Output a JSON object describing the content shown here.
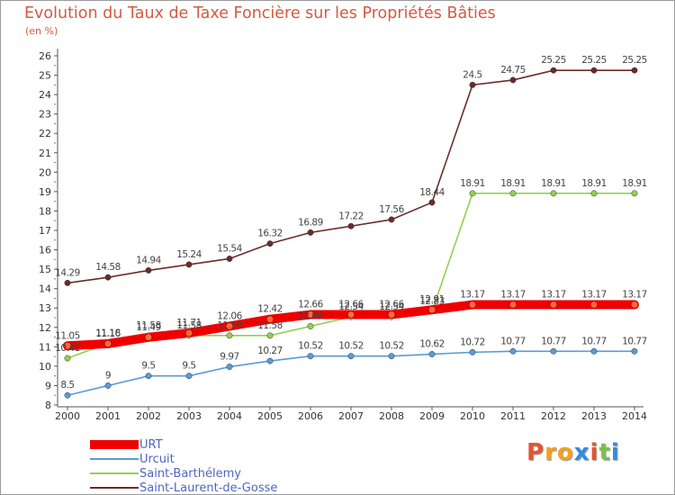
{
  "title": "Evolution du Taux de Taxe Foncière sur les Propriétés Bâties",
  "unit": "(en %)",
  "logo": {
    "text": "Proxiti",
    "colors": [
      "#e0562f",
      "#f0a21c",
      "#f0a21c",
      "#2f8ee0",
      "#e0562f",
      "#7cc04a",
      "#2f8ee0"
    ]
  },
  "chart_data": {
    "type": "line",
    "title": "Evolution du Taux de Taxe Foncière sur les Propriétés Bâties",
    "ylabel": "(en %)",
    "xlabel": "",
    "ylim": [
      8,
      26
    ],
    "yticks": [
      8,
      9,
      10,
      11,
      12,
      13,
      14,
      15,
      16,
      17,
      18,
      19,
      20,
      21,
      22,
      23,
      24,
      25,
      26
    ],
    "x": [
      "2000",
      "2001",
      "2002",
      "2003",
      "2004",
      "2005",
      "2006",
      "2007",
      "2008",
      "2009",
      "2010",
      "2011",
      "2012",
      "2013",
      "2014"
    ],
    "grid": false,
    "legend": "bottom-left",
    "series": [
      {
        "name": "URT",
        "color": "#ee0000",
        "values": [
          11.05,
          11.16,
          11.49,
          11.71,
          12.06,
          12.42,
          12.66,
          12.66,
          12.66,
          12.91,
          13.17,
          13.17,
          13.17,
          13.17,
          13.17
        ],
        "labels": [
          "11.05",
          "11.16",
          "11.49",
          "11.71",
          "12.06",
          "12.42",
          "12.66",
          "12.66",
          "12.66",
          "12.91",
          "13.17",
          "13.17",
          "13.17",
          "13.17",
          "13.17"
        ]
      },
      {
        "name": "Urcuit",
        "color": "#5b9bd5",
        "values": [
          8.5,
          9,
          9.5,
          9.5,
          9.97,
          10.27,
          10.52,
          10.52,
          10.52,
          10.62,
          10.72,
          10.77,
          10.77,
          10.77,
          10.77
        ],
        "labels": [
          "8.5",
          "9",
          "9.5",
          "9.5",
          "9.97",
          "10.27",
          "10.52",
          "10.52",
          "10.52",
          "10.62",
          "10.72",
          "10.77",
          "10.77",
          "10.77",
          "10.77"
        ]
      },
      {
        "name": "Saint-Barthélemy",
        "color": "#8fd14f",
        "values": [
          10.41,
          11.18,
          11.58,
          11.58,
          11.58,
          11.58,
          12.06,
          12.54,
          12.54,
          12.83,
          18.91,
          18.91,
          18.91,
          18.91,
          18.91
        ],
        "labels": [
          "10.41",
          "11.18",
          "11.58",
          "11.58",
          "11.58",
          "11.58",
          "12.06",
          "12.54",
          "12.54",
          "12.83",
          "18.91",
          "18.91",
          "18.91",
          "18.91",
          "18.91"
        ]
      },
      {
        "name": "Saint-Laurent-de-Gosse",
        "color": "#6b2b2b",
        "values": [
          14.29,
          14.58,
          14.94,
          15.24,
          15.54,
          16.32,
          16.89,
          17.22,
          17.56,
          18.44,
          24.5,
          24.75,
          25.25,
          25.25,
          25.25
        ],
        "labels": [
          "14.29",
          "14.58",
          "14.94",
          "15.24",
          "15.54",
          "16.32",
          "16.89",
          "17.22",
          "17.56",
          "18.44",
          "24.5",
          "24.75",
          "25.25",
          "25.25",
          "25.25"
        ]
      }
    ]
  }
}
